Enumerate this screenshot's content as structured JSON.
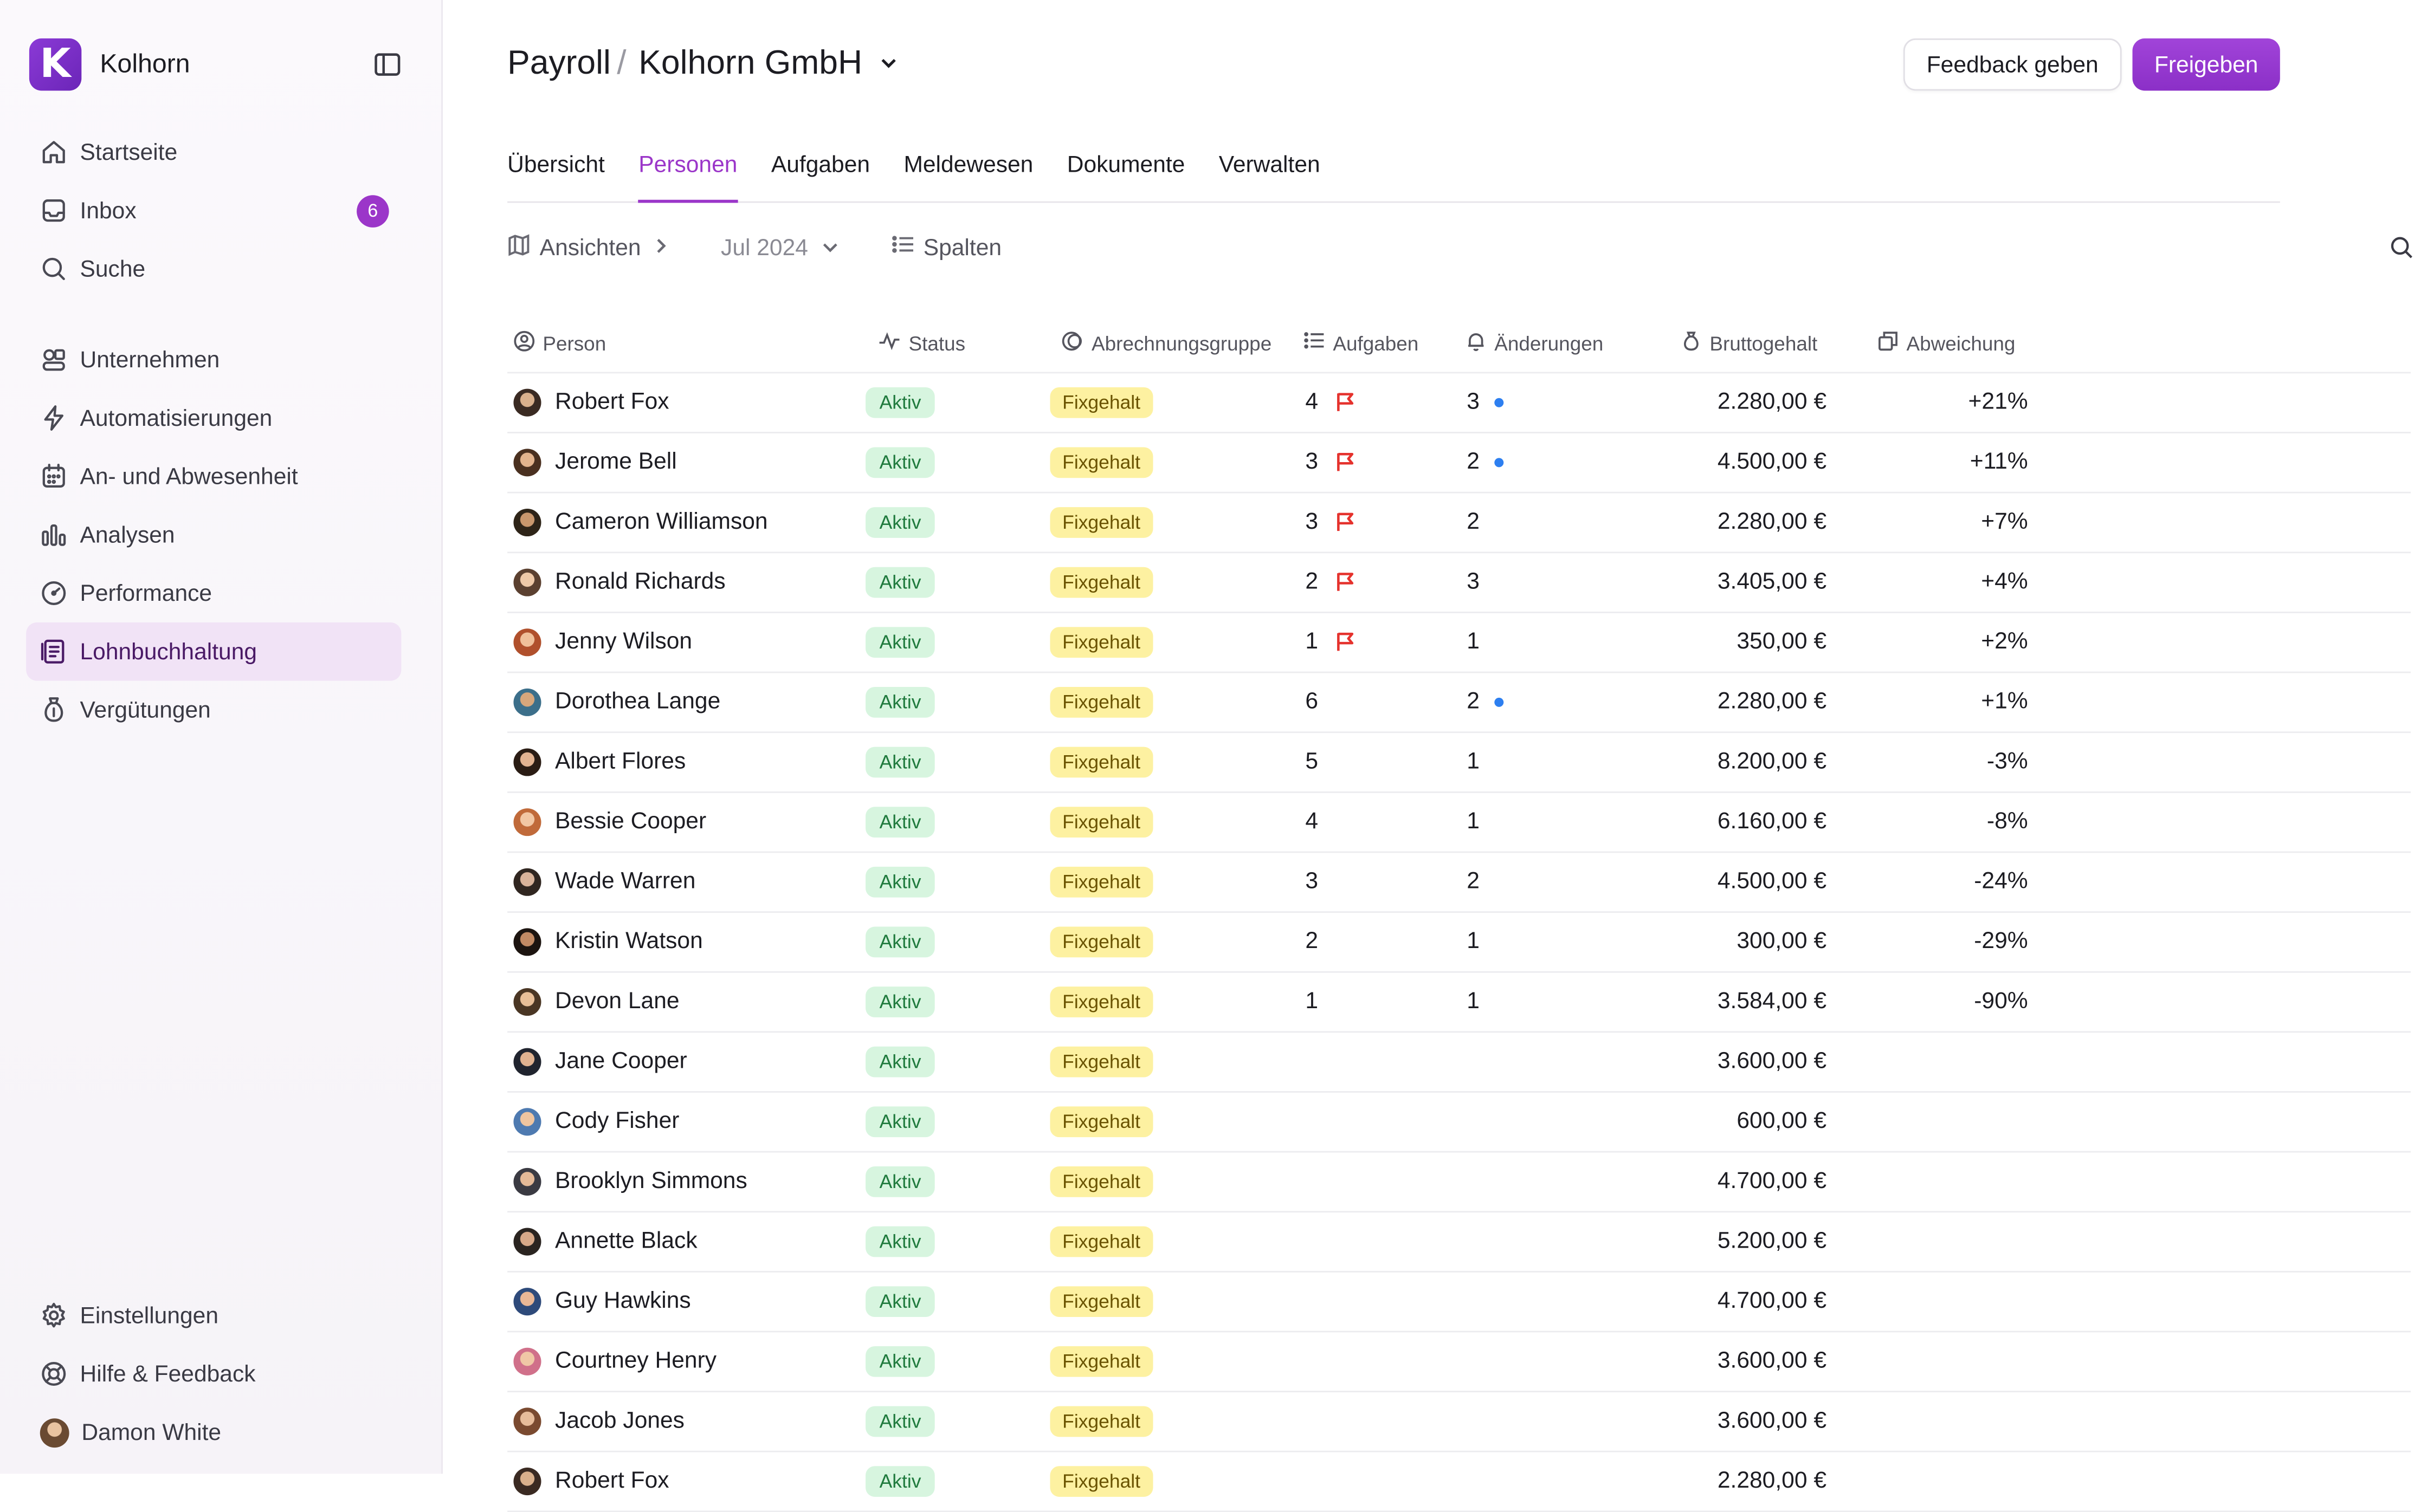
{
  "sidebar": {
    "brand": {
      "logo_letter": "K",
      "name": "Kolhorn"
    },
    "nav_top": [
      {
        "label": "Startseite",
        "icon": "home-icon"
      },
      {
        "label": "Inbox",
        "icon": "inbox-icon",
        "badge": "6"
      },
      {
        "label": "Suche",
        "icon": "search-icon"
      }
    ],
    "nav_main": [
      {
        "label": "Unternehmen",
        "icon": "company-icon"
      },
      {
        "label": "Automatisierungen",
        "icon": "lightning-icon"
      },
      {
        "label": "An- und Abwesenheit",
        "icon": "calendar-icon"
      },
      {
        "label": "Analysen",
        "icon": "chart-icon"
      },
      {
        "label": "Performance",
        "icon": "gauge-icon"
      },
      {
        "label": "Lohnbuchhaltung",
        "icon": "payroll-icon",
        "active": true
      },
      {
        "label": "Vergütungen",
        "icon": "money-bag-icon"
      }
    ],
    "nav_bottom": [
      {
        "label": "Einstellungen",
        "icon": "gear-icon"
      },
      {
        "label": "Hilfe & Feedback",
        "icon": "lifebuoy-icon"
      },
      {
        "label": "Damon White",
        "icon": "avatar"
      }
    ]
  },
  "header": {
    "breadcrumb_root": "Payroll",
    "separator": "/",
    "organization": "Kolhorn GmbH",
    "feedback_label": "Feedback geben",
    "release_label": "Freigeben"
  },
  "tabs": [
    {
      "label": "Übersicht"
    },
    {
      "label": "Personen",
      "active": true
    },
    {
      "label": "Aufgaben"
    },
    {
      "label": "Meldewesen"
    },
    {
      "label": "Dokumente"
    },
    {
      "label": "Verwalten"
    }
  ],
  "toolbar": {
    "views_label": "Ansichten",
    "month_label": "Jul 2024",
    "columns_label": "Spalten"
  },
  "table": {
    "headers": {
      "person": "Person",
      "status": "Status",
      "group": "Abrechnungsgruppe",
      "tasks": "Aufgaben",
      "changes": "Änderungen",
      "gross": "Bruttogehalt",
      "deviation": "Abweichung"
    },
    "rows": [
      {
        "name": "Robert Fox",
        "status": "Aktiv",
        "group": "Fixgehalt",
        "tasks": "4",
        "flag": true,
        "changes": "3",
        "dot": true,
        "gross": "2.280,00 €",
        "deviation": "+21%"
      },
      {
        "name": "Jerome Bell",
        "status": "Aktiv",
        "group": "Fixgehalt",
        "tasks": "3",
        "flag": true,
        "changes": "2",
        "dot": true,
        "gross": "4.500,00 €",
        "deviation": "+11%"
      },
      {
        "name": "Cameron Williamson",
        "status": "Aktiv",
        "group": "Fixgehalt",
        "tasks": "3",
        "flag": true,
        "changes": "2",
        "dot": false,
        "gross": "2.280,00 €",
        "deviation": "+7%"
      },
      {
        "name": "Ronald Richards",
        "status": "Aktiv",
        "group": "Fixgehalt",
        "tasks": "2",
        "flag": true,
        "changes": "3",
        "dot": false,
        "gross": "3.405,00 €",
        "deviation": "+4%"
      },
      {
        "name": "Jenny Wilson",
        "status": "Aktiv",
        "group": "Fixgehalt",
        "tasks": "1",
        "flag": true,
        "changes": "1",
        "dot": false,
        "gross": "350,00 €",
        "deviation": "+2%"
      },
      {
        "name": "Dorothea Lange",
        "status": "Aktiv",
        "group": "Fixgehalt",
        "tasks": "6",
        "flag": false,
        "changes": "2",
        "dot": true,
        "gross": "2.280,00 €",
        "deviation": "+1%"
      },
      {
        "name": "Albert Flores",
        "status": "Aktiv",
        "group": "Fixgehalt",
        "tasks": "5",
        "flag": false,
        "changes": "1",
        "dot": false,
        "gross": "8.200,00 €",
        "deviation": "-3%"
      },
      {
        "name": "Bessie Cooper",
        "status": "Aktiv",
        "group": "Fixgehalt",
        "tasks": "4",
        "flag": false,
        "changes": "1",
        "dot": false,
        "gross": "6.160,00 €",
        "deviation": "-8%"
      },
      {
        "name": "Wade Warren",
        "status": "Aktiv",
        "group": "Fixgehalt",
        "tasks": "3",
        "flag": false,
        "changes": "2",
        "dot": false,
        "gross": "4.500,00 €",
        "deviation": "-24%"
      },
      {
        "name": "Kristin Watson",
        "status": "Aktiv",
        "group": "Fixgehalt",
        "tasks": "2",
        "flag": false,
        "changes": "1",
        "dot": false,
        "gross": "300,00 €",
        "deviation": "-29%"
      },
      {
        "name": "Devon Lane",
        "status": "Aktiv",
        "group": "Fixgehalt",
        "tasks": "1",
        "flag": false,
        "changes": "1",
        "dot": false,
        "gross": "3.584,00 €",
        "deviation": "-90%"
      },
      {
        "name": "Jane Cooper",
        "status": "Aktiv",
        "group": "Fixgehalt",
        "tasks": "",
        "flag": false,
        "changes": "",
        "dot": false,
        "gross": "3.600,00 €",
        "deviation": ""
      },
      {
        "name": "Cody Fisher",
        "status": "Aktiv",
        "group": "Fixgehalt",
        "tasks": "",
        "flag": false,
        "changes": "",
        "dot": false,
        "gross": "600,00 €",
        "deviation": ""
      },
      {
        "name": "Brooklyn Simmons",
        "status": "Aktiv",
        "group": "Fixgehalt",
        "tasks": "",
        "flag": false,
        "changes": "",
        "dot": false,
        "gross": "4.700,00 €",
        "deviation": ""
      },
      {
        "name": "Annette Black",
        "status": "Aktiv",
        "group": "Fixgehalt",
        "tasks": "",
        "flag": false,
        "changes": "",
        "dot": false,
        "gross": "5.200,00 €",
        "deviation": ""
      },
      {
        "name": "Guy Hawkins",
        "status": "Aktiv",
        "group": "Fixgehalt",
        "tasks": "",
        "flag": false,
        "changes": "",
        "dot": false,
        "gross": "4.700,00 €",
        "deviation": ""
      },
      {
        "name": "Courtney Henry",
        "status": "Aktiv",
        "group": "Fixgehalt",
        "tasks": "",
        "flag": false,
        "changes": "",
        "dot": false,
        "gross": "3.600,00 €",
        "deviation": ""
      },
      {
        "name": "Jacob Jones",
        "status": "Aktiv",
        "group": "Fixgehalt",
        "tasks": "",
        "flag": false,
        "changes": "",
        "dot": false,
        "gross": "3.600,00 €",
        "deviation": ""
      },
      {
        "name": "Robert Fox",
        "status": "Aktiv",
        "group": "Fixgehalt",
        "tasks": "",
        "flag": false,
        "changes": "",
        "dot": false,
        "gross": "2.280,00 €",
        "deviation": ""
      }
    ]
  },
  "colors": {
    "accent": "#9b36c9",
    "active_nav_bg": "#f1e3f6",
    "status_green_bg": "#d7f5df",
    "group_yellow_bg": "#fdf1a1",
    "flag_red": "#e5322d",
    "change_dot_blue": "#2d7ff0"
  }
}
